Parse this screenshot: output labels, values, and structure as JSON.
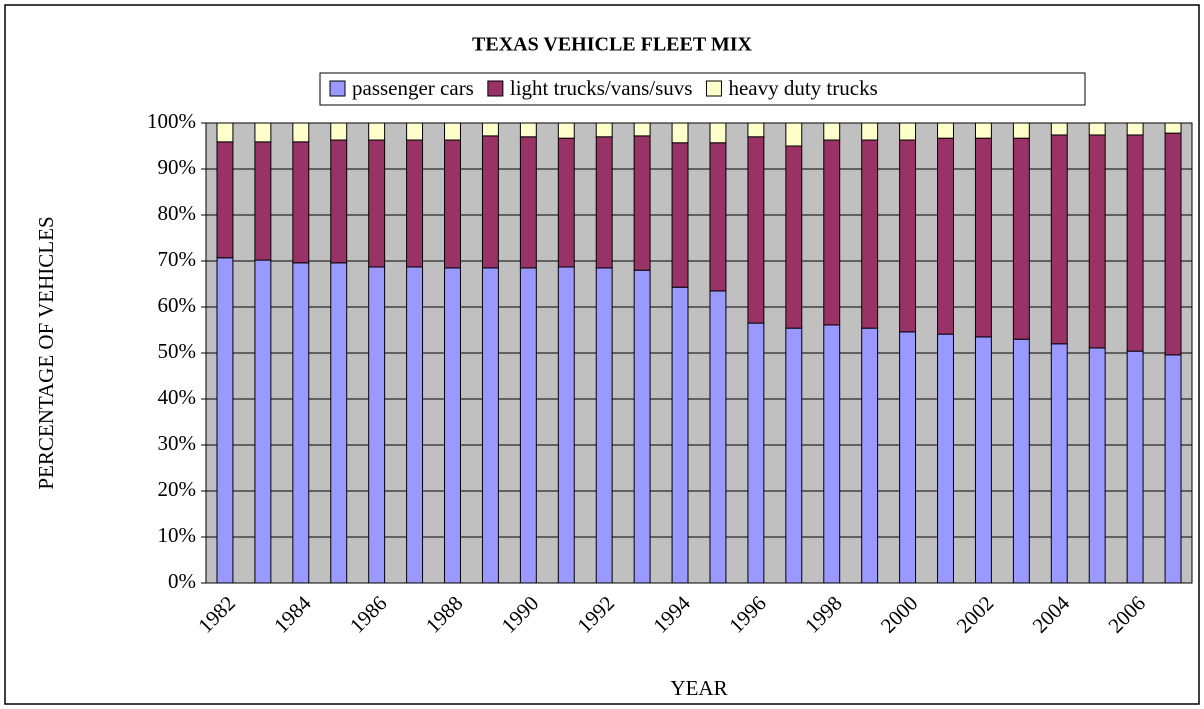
{
  "chart_data": {
    "type": "stacked_bar",
    "title": "TEXAS VEHICLE FLEET MIX",
    "x_label": "YEAR",
    "y_label": "PERCENTAGE OF VEHICLES",
    "categories": [
      "1982",
      null,
      "1984",
      null,
      "1986",
      null,
      "1988",
      null,
      "1990",
      null,
      "1992",
      null,
      "1994",
      null,
      "1996",
      null,
      "1998",
      null,
      "2000",
      null,
      "2002",
      null,
      "2004",
      null,
      "2006",
      null
    ],
    "series": [
      {
        "name": "passenger cars",
        "color": "#9999ff",
        "values": [
          70.7,
          70.2,
          69.6,
          69.6,
          68.7,
          68.7,
          68.5,
          68.5,
          68.5,
          68.7,
          68.5,
          68.0,
          64.3,
          63.5,
          56.5,
          55.4,
          56.1,
          55.4,
          54.6,
          54.1,
          53.5,
          53.0,
          52.0,
          51.1,
          50.4,
          49.6
        ]
      },
      {
        "name": "light trucks/vans/suvs",
        "color": "#993366",
        "values": [
          25.2,
          25.7,
          26.3,
          26.7,
          27.6,
          27.6,
          27.8,
          28.7,
          28.5,
          28.0,
          28.5,
          29.2,
          31.4,
          32.2,
          40.5,
          39.6,
          40.2,
          40.9,
          41.7,
          42.6,
          43.2,
          43.7,
          45.4,
          46.3,
          47.0,
          48.2
        ]
      },
      {
        "name": "heavy duty trucks",
        "color": "#ffffcc",
        "values": [
          4.1,
          4.1,
          4.1,
          3.7,
          3.7,
          3.7,
          3.7,
          2.8,
          3.0,
          3.3,
          3.0,
          2.8,
          4.3,
          4.3,
          3.0,
          5.0,
          3.7,
          3.7,
          3.7,
          3.3,
          3.3,
          3.3,
          2.6,
          2.6,
          2.6,
          2.2
        ]
      }
    ],
    "ylim": [
      0,
      100
    ],
    "yticks": [
      {
        "value": 0,
        "label": "0%"
      },
      {
        "value": 10,
        "label": "10%"
      },
      {
        "value": 20,
        "label": "20%"
      },
      {
        "value": 30,
        "label": "30%"
      },
      {
        "value": 40,
        "label": "40%"
      },
      {
        "value": 50,
        "label": "50%"
      },
      {
        "value": 60,
        "label": "60%"
      },
      {
        "value": 70,
        "label": "70%"
      },
      {
        "value": 80,
        "label": "80%"
      },
      {
        "value": 90,
        "label": "90%"
      },
      {
        "value": 100,
        "label": "100%"
      }
    ],
    "grid": true,
    "plot_background": "#c0c0c0",
    "legend": "top"
  }
}
